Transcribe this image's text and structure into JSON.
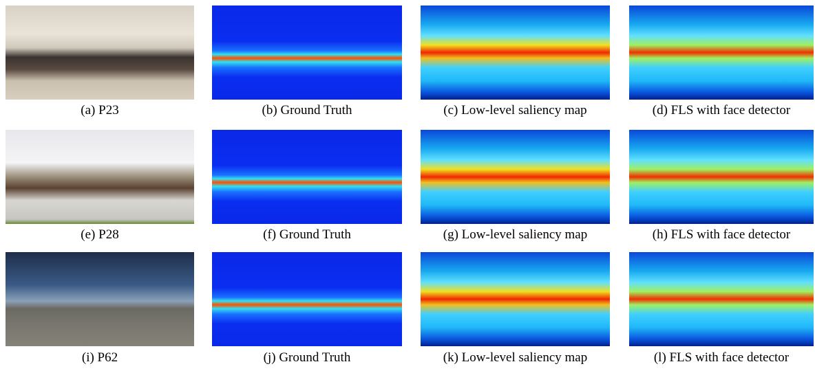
{
  "panels": [
    {
      "caption": "(a) P23"
    },
    {
      "caption": "(b) Ground Truth"
    },
    {
      "caption": "(c) Low-level saliency map"
    },
    {
      "caption": "(d) FLS with face detector"
    },
    {
      "caption": "(e) P28"
    },
    {
      "caption": "(f) Ground Truth"
    },
    {
      "caption": "(g) Low-level saliency map"
    },
    {
      "caption": "(h) FLS with face detector"
    },
    {
      "caption": "(i) P62"
    },
    {
      "caption": "(j) Ground Truth"
    },
    {
      "caption": "(k) Low-level saliency map"
    },
    {
      "caption": "(l) FLS with face detector"
    }
  ]
}
